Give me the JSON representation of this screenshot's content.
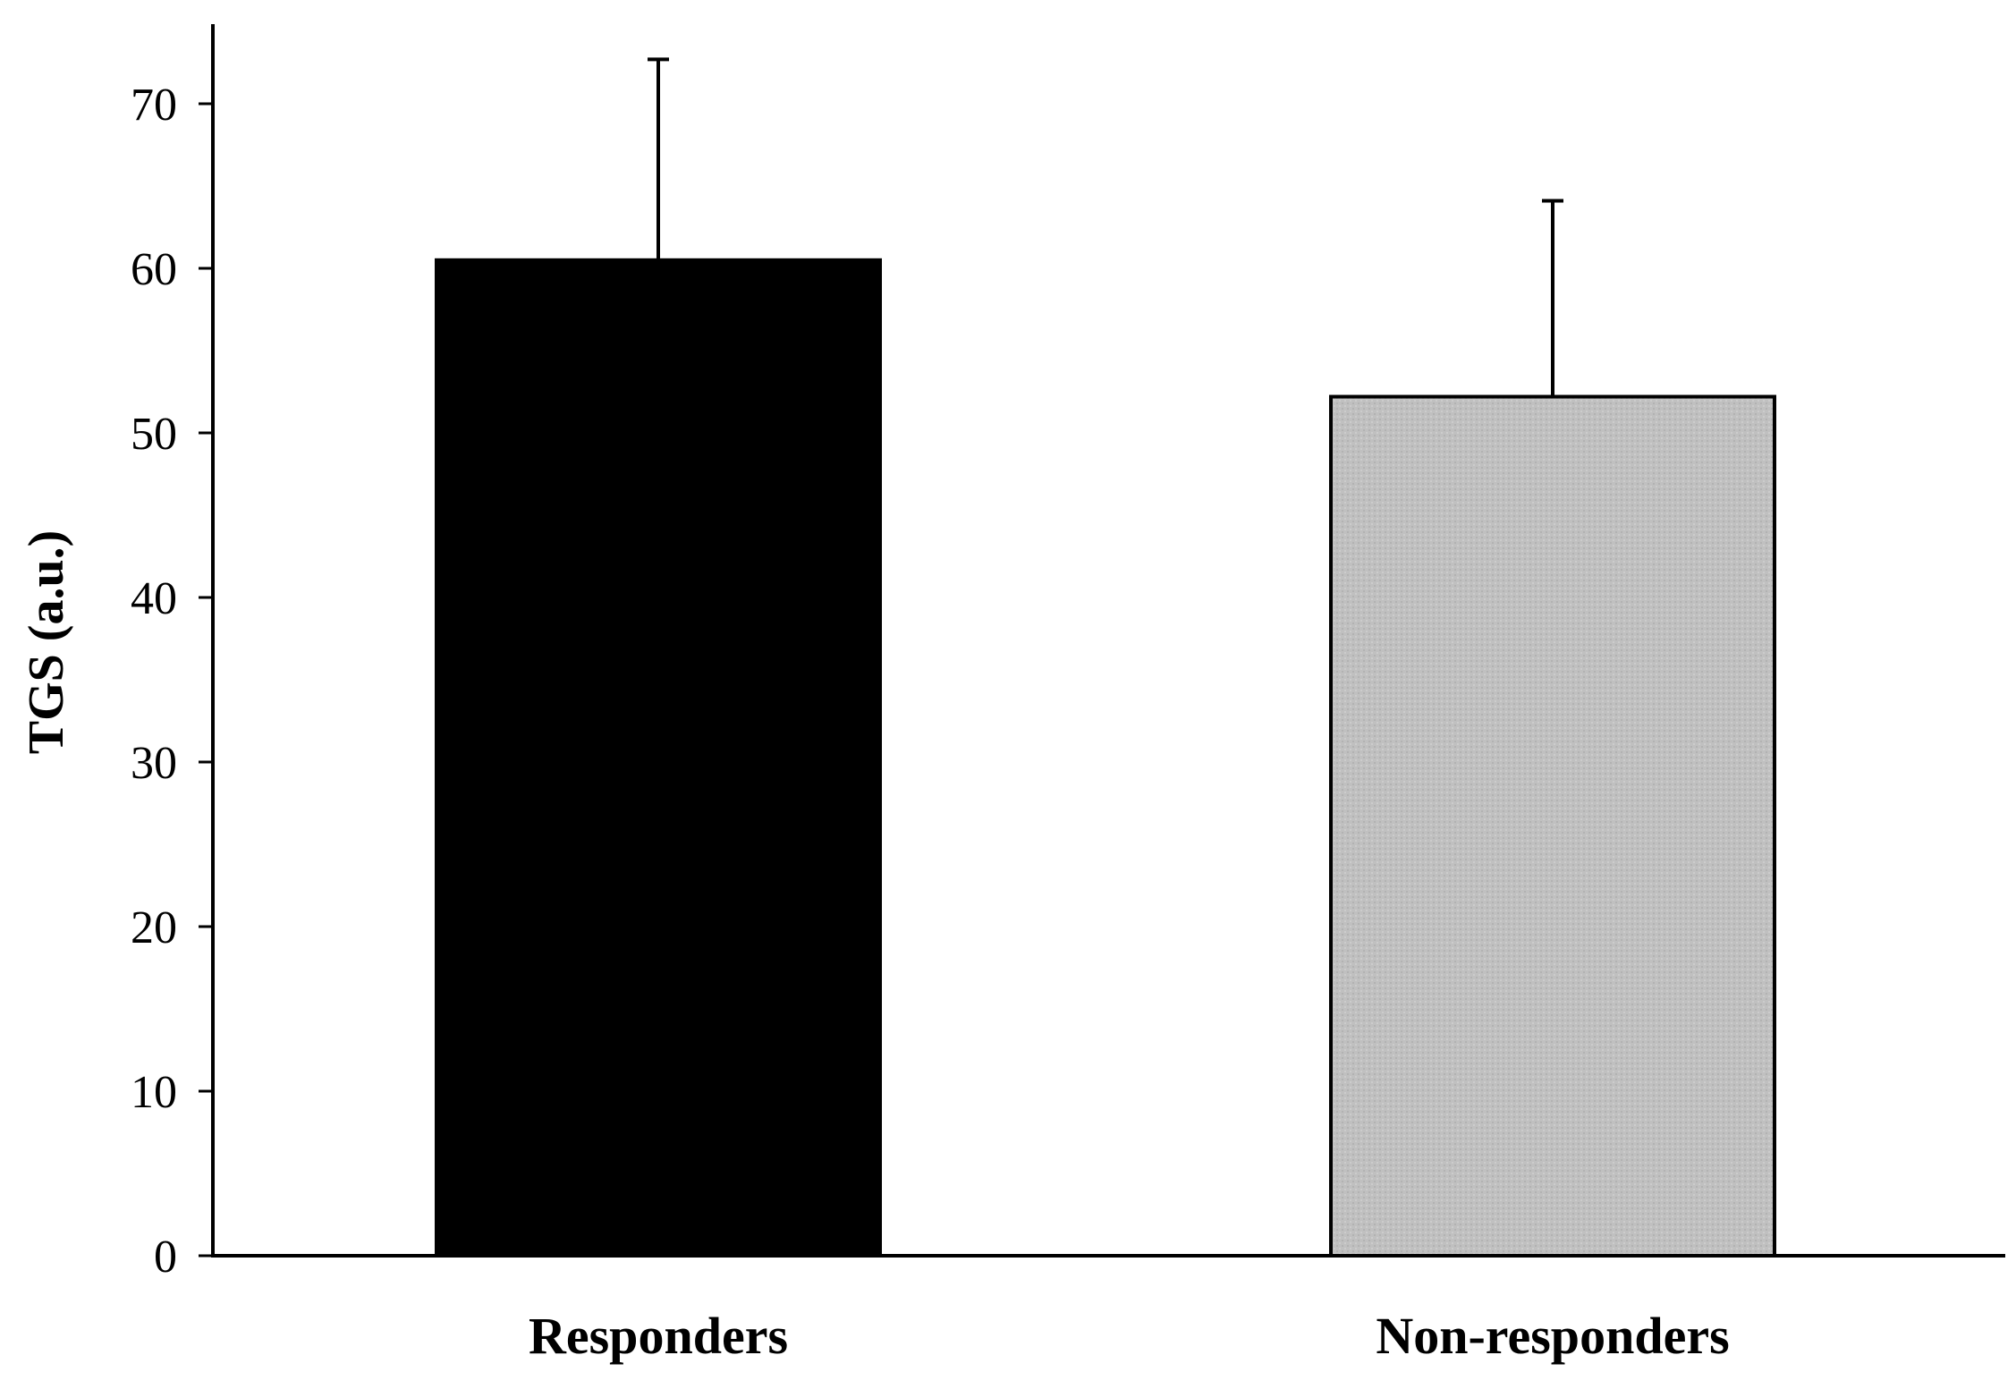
{
  "chart_data": {
    "type": "bar",
    "title": "",
    "xlabel": "",
    "ylabel": "TGS (a.u.)",
    "categories": [
      "Responders",
      "Non-responders"
    ],
    "values": [
      60.5,
      52.2
    ],
    "error_plus": [
      12.2,
      11.9
    ],
    "ylim": [
      0,
      75
    ],
    "yticks": [
      "0",
      "10",
      "20",
      "30",
      "40",
      "50",
      "60",
      "70"
    ],
    "grid": false,
    "legend": "none",
    "bar_colors": [
      "#000000",
      "#c0c0c0"
    ],
    "bar_edge_color": "#000000"
  }
}
